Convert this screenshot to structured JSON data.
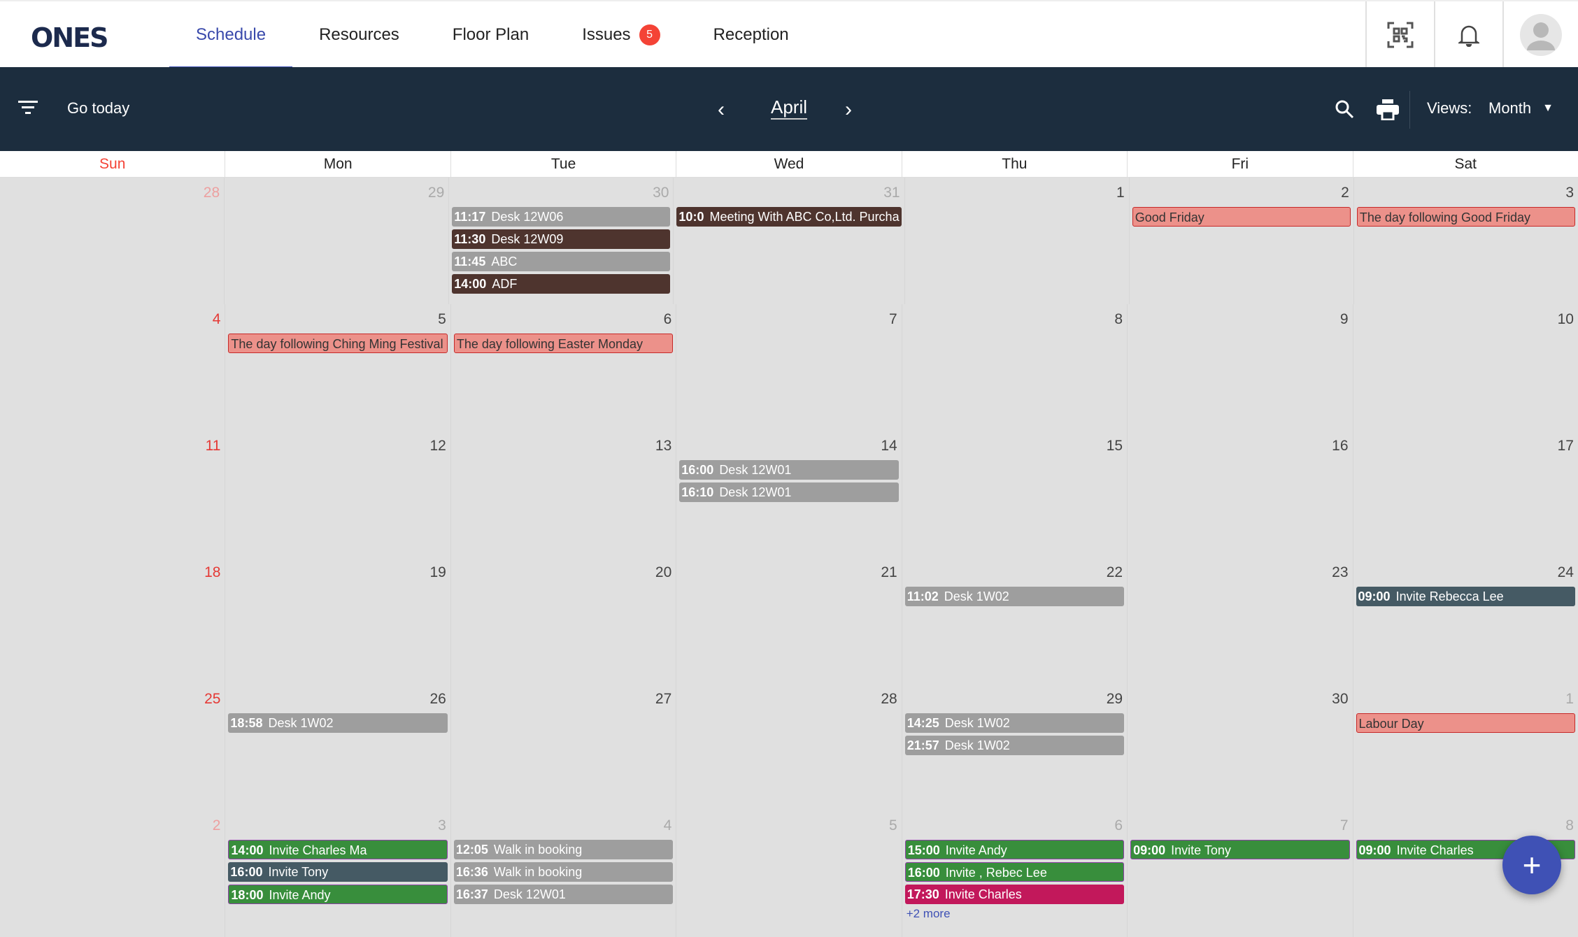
{
  "app": {
    "logo": "ONES"
  },
  "nav": {
    "tabs": [
      {
        "label": "Schedule",
        "active": true
      },
      {
        "label": "Resources"
      },
      {
        "label": "Floor Plan"
      },
      {
        "label": "Issues",
        "badge": "5"
      },
      {
        "label": "Reception"
      }
    ]
  },
  "header_icons": [
    "qr-code-icon",
    "bell-icon",
    "avatar"
  ],
  "toolbar": {
    "go_today": "Go today",
    "month": "April",
    "views_label": "Views:",
    "view_value": "Month"
  },
  "weekdays": [
    "Sun",
    "Mon",
    "Tue",
    "Wed",
    "Thu",
    "Fri",
    "Sat"
  ],
  "colors": {
    "gray": "#9e9e9e",
    "brown": "#4e342e",
    "holiday": "#ec918a",
    "green": "#388e3c",
    "slate": "#455a64",
    "pink": "#c2185b",
    "accent": "#3f51b5"
  },
  "weeks": [
    [
      {
        "d": "28",
        "m": true
      },
      {
        "d": "29",
        "m": true
      },
      {
        "d": "30",
        "m": true,
        "ev": [
          {
            "t": "11:17",
            "n": "Desk 12W06",
            "c": "gray"
          },
          {
            "t": "11:30",
            "n": "Desk 12W09",
            "c": "brown"
          },
          {
            "t": "11:45",
            "n": "ABC",
            "c": "gray"
          },
          {
            "t": "14:00",
            "n": "ADF",
            "c": "brown"
          }
        ]
      },
      {
        "d": "31",
        "m": true,
        "ev": [
          {
            "t": "10:0",
            "n": "Meeting With ABC Co,Ltd. Purcha",
            "c": "brown"
          }
        ]
      },
      {
        "d": "1"
      },
      {
        "d": "2",
        "ev": [
          {
            "n": "Good Friday",
            "c": "holiday"
          }
        ]
      },
      {
        "d": "3",
        "ev": [
          {
            "n": "The day following Good Friday",
            "c": "holiday"
          }
        ]
      }
    ],
    [
      {
        "d": "4"
      },
      {
        "d": "5",
        "ev": [
          {
            "n": "The day following Ching Ming Festival",
            "c": "holiday"
          }
        ]
      },
      {
        "d": "6",
        "ev": [
          {
            "n": "The day following Easter Monday",
            "c": "holiday"
          }
        ]
      },
      {
        "d": "7"
      },
      {
        "d": "8"
      },
      {
        "d": "9"
      },
      {
        "d": "10"
      }
    ],
    [
      {
        "d": "11"
      },
      {
        "d": "12"
      },
      {
        "d": "13"
      },
      {
        "d": "14",
        "ev": [
          {
            "t": "16:00",
            "n": "Desk 12W01",
            "c": "gray"
          },
          {
            "t": "16:10",
            "n": "Desk 12W01",
            "c": "gray"
          }
        ]
      },
      {
        "d": "15"
      },
      {
        "d": "16"
      },
      {
        "d": "17"
      }
    ],
    [
      {
        "d": "18"
      },
      {
        "d": "19"
      },
      {
        "d": "20"
      },
      {
        "d": "21"
      },
      {
        "d": "22",
        "ev": [
          {
            "t": "11:02",
            "n": "Desk 1W02",
            "c": "gray"
          }
        ]
      },
      {
        "d": "23"
      },
      {
        "d": "24",
        "ev": [
          {
            "t": "09:00",
            "n": "Invite Rebecca Lee",
            "c": "slate"
          }
        ]
      }
    ],
    [
      {
        "d": "25"
      },
      {
        "d": "26",
        "ev": [
          {
            "t": "18:58",
            "n": "Desk 1W02",
            "c": "gray"
          }
        ]
      },
      {
        "d": "27"
      },
      {
        "d": "28"
      },
      {
        "d": "29",
        "ev": [
          {
            "t": "14:25",
            "n": "Desk 1W02",
            "c": "gray"
          },
          {
            "t": "21:57",
            "n": "Desk 1W02",
            "c": "gray"
          }
        ]
      },
      {
        "d": "30"
      },
      {
        "d": "1",
        "m": true,
        "ev": [
          {
            "n": "Labour Day",
            "c": "holiday"
          }
        ]
      }
    ],
    [
      {
        "d": "2",
        "m": true
      },
      {
        "d": "3",
        "m": true,
        "ev": [
          {
            "t": "14:00",
            "n": "Invite Charles Ma",
            "c": "green"
          },
          {
            "t": "16:00",
            "n": "Invite Tony",
            "c": "slate"
          },
          {
            "t": "18:00",
            "n": "Invite Andy",
            "c": "green"
          }
        ]
      },
      {
        "d": "4",
        "m": true,
        "ev": [
          {
            "t": "12:05",
            "n": "Walk in booking",
            "c": "gray"
          },
          {
            "t": "16:36",
            "n": "Walk in booking",
            "c": "gray"
          },
          {
            "t": "16:37",
            "n": "Desk 12W01",
            "c": "gray"
          }
        ]
      },
      {
        "d": "5",
        "m": true
      },
      {
        "d": "6",
        "m": true,
        "ev": [
          {
            "t": "15:00",
            "n": "Invite Andy",
            "c": "green"
          },
          {
            "t": "16:00",
            "n": "Invite , Rebec Lee",
            "c": "green"
          },
          {
            "t": "17:30",
            "n": "Invite Charles",
            "c": "pink"
          }
        ],
        "more": "+2 more"
      },
      {
        "d": "7",
        "m": true,
        "ev": [
          {
            "t": "09:00",
            "n": "Invite Tony",
            "c": "green"
          }
        ]
      },
      {
        "d": "8",
        "m": true,
        "ev": [
          {
            "t": "09:00",
            "n": "Invite Charles",
            "c": "green"
          }
        ]
      }
    ]
  ],
  "fab": {
    "label": "+"
  }
}
